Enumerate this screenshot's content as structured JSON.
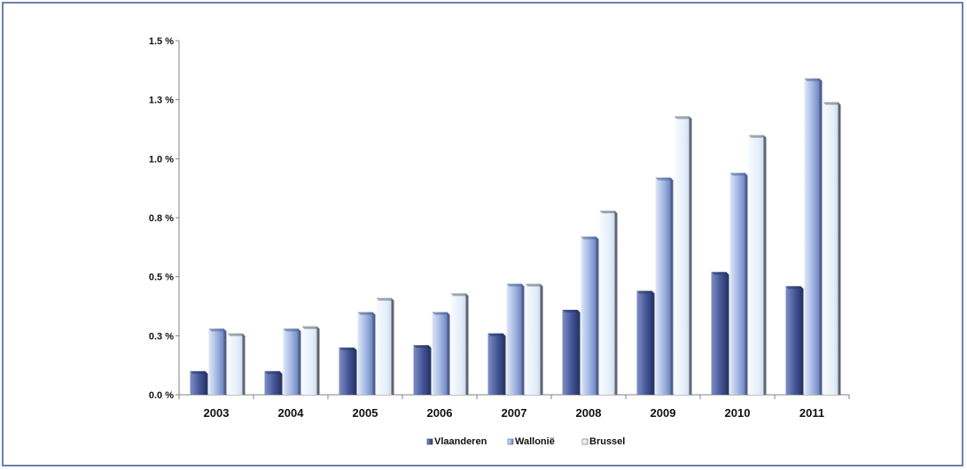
{
  "chart_data": {
    "type": "bar",
    "title": "",
    "xlabel": "",
    "ylabel": "",
    "categories": [
      "2003",
      "2004",
      "2005",
      "2006",
      "2007",
      "2008",
      "2009",
      "2010",
      "2011"
    ],
    "series": [
      {
        "name": "Vlaanderen",
        "values": [
          0.1,
          0.1,
          0.2,
          0.21,
          0.26,
          0.36,
          0.44,
          0.52,
          0.46
        ],
        "color": "#3d4f8a"
      },
      {
        "name": "Wallonië",
        "values": [
          0.28,
          0.28,
          0.35,
          0.35,
          0.47,
          0.67,
          0.92,
          0.94,
          1.34
        ],
        "color": "#8fa6d8"
      },
      {
        "name": "Brussel",
        "values": [
          0.26,
          0.29,
          0.41,
          0.43,
          0.47,
          0.78,
          1.18,
          1.1,
          1.24
        ],
        "color": "#eaf3fc"
      }
    ],
    "ylim": [
      0,
      1.5
    ],
    "yticks": [
      "0.0 %",
      "0.3 %",
      "0.5 %",
      "0.8 %",
      "1.0 %",
      "1.3 %",
      "1.5 %"
    ],
    "grid": false,
    "legend_position": "bottom"
  }
}
